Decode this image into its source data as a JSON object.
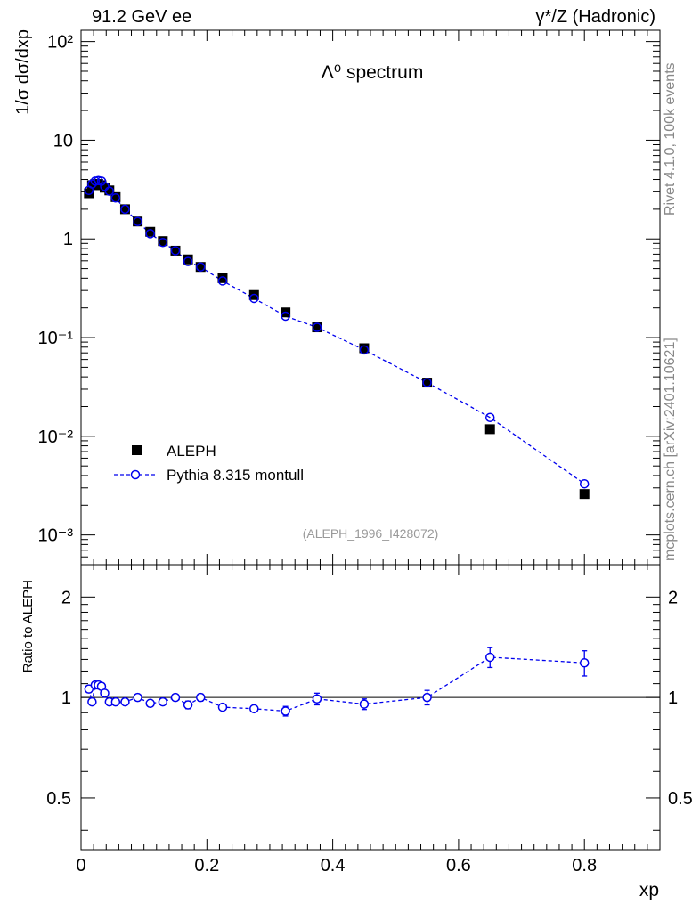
{
  "header": {
    "left": "91.2 GeV ee",
    "right": "γ*/Z (Hadronic)"
  },
  "side_labels": {
    "version": "Rivet 4.1.0,  100k events",
    "source": "mcplots.cern.ch [arXiv:2401.10621]"
  },
  "top_panel": {
    "title": "Λ⁰ spectrum",
    "ylabel": "1/σ  dσ/dxp",
    "analysis_id": "(ALEPH_1996_I428072)",
    "y_ticks": [
      "10⁻³",
      "10⁻²",
      "10⁻¹",
      "1",
      "10",
      "10²"
    ]
  },
  "bottom_panel": {
    "ylabel": "Ratio to ALEPH",
    "y_ticks": [
      "0.5",
      "1",
      "2"
    ]
  },
  "xaxis": {
    "label": "xp",
    "ticks": [
      "0",
      "0.2",
      "0.4",
      "0.6",
      "0.8"
    ]
  },
  "legend": {
    "data_label": "ALEPH",
    "mc_label": "Pythia 8.315 montull"
  },
  "colors": {
    "data": "#000000",
    "mc": "#0000ee"
  },
  "chart_data": [
    {
      "type": "scatter",
      "panel": "main",
      "title": "Λ⁰ spectrum",
      "xlabel": "xp",
      "ylabel": "1/σ dσ/dxp",
      "xlim": [
        0,
        0.92
      ],
      "ylim": [
        0.0005,
        130
      ],
      "yscale": "log",
      "legend_position": "bottom-left",
      "series": [
        {
          "name": "ALEPH",
          "marker": "filled-square",
          "x": [
            0.0125,
            0.0175,
            0.0225,
            0.0275,
            0.0325,
            0.0375,
            0.045,
            0.055,
            0.07,
            0.09,
            0.11,
            0.13,
            0.15,
            0.17,
            0.19,
            0.225,
            0.275,
            0.325,
            0.375,
            0.45,
            0.55,
            0.65,
            0.8
          ],
          "values": [
            2.9,
            3.5,
            3.6,
            3.6,
            3.5,
            3.3,
            3.1,
            2.65,
            2.0,
            1.5,
            1.18,
            0.95,
            0.76,
            0.62,
            0.52,
            0.4,
            0.27,
            0.18,
            0.127,
            0.078,
            0.035,
            0.0118,
            0.0026
          ]
        },
        {
          "name": "Pythia 8.315 montull",
          "marker": "open-circle",
          "line": "dashed",
          "x": [
            0.0125,
            0.0175,
            0.0225,
            0.0275,
            0.0325,
            0.0375,
            0.045,
            0.055,
            0.07,
            0.09,
            0.11,
            0.13,
            0.15,
            0.17,
            0.19,
            0.225,
            0.275,
            0.325,
            0.375,
            0.45,
            0.55,
            0.65,
            0.8
          ],
          "values": [
            3.1,
            3.6,
            3.85,
            3.9,
            3.85,
            3.4,
            3.05,
            2.6,
            2.0,
            1.5,
            1.13,
            0.92,
            0.76,
            0.59,
            0.52,
            0.375,
            0.25,
            0.165,
            0.127,
            0.075,
            0.035,
            0.0155,
            0.0033
          ]
        }
      ]
    },
    {
      "type": "scatter",
      "panel": "ratio",
      "xlabel": "xp",
      "ylabel": "Ratio to ALEPH",
      "xlim": [
        0,
        0.92
      ],
      "ylim": [
        0.35,
        2.5
      ],
      "yscale": "log",
      "reference_line": 1,
      "series": [
        {
          "name": "Pythia 8.315 montull / ALEPH",
          "marker": "open-circle",
          "line": "dashed",
          "x": [
            0.0125,
            0.0175,
            0.0225,
            0.0275,
            0.0325,
            0.0375,
            0.045,
            0.055,
            0.07,
            0.09,
            0.11,
            0.13,
            0.15,
            0.17,
            0.19,
            0.225,
            0.275,
            0.325,
            0.375,
            0.45,
            0.55,
            0.65,
            0.8
          ],
          "values": [
            1.06,
            0.97,
            1.09,
            1.09,
            1.08,
            1.03,
            0.97,
            0.97,
            0.97,
            1.0,
            0.96,
            0.97,
            1.0,
            0.95,
            1.0,
            0.935,
            0.925,
            0.91,
            0.99,
            0.955,
            1.0,
            1.32,
            1.27
          ],
          "errors": [
            0.025,
            0.02,
            0.02,
            0.02,
            0.02,
            0.02,
            0.015,
            0.015,
            0.015,
            0.015,
            0.015,
            0.015,
            0.015,
            0.025,
            0.025,
            0.015,
            0.02,
            0.03,
            0.04,
            0.035,
            0.05,
            0.09,
            0.11
          ]
        }
      ]
    }
  ]
}
